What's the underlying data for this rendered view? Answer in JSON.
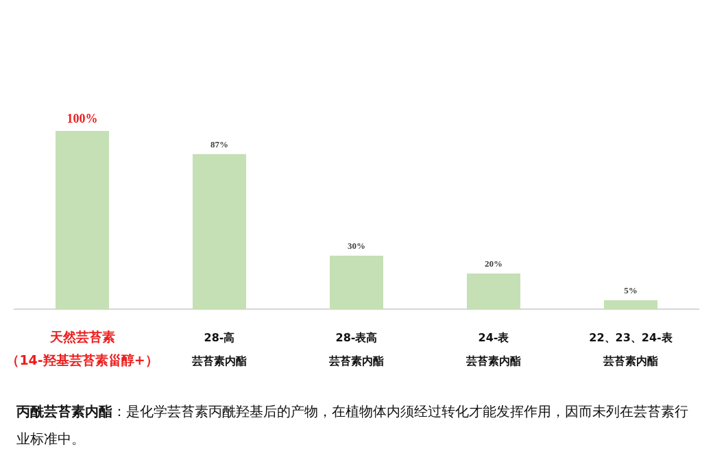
{
  "chart_data": {
    "type": "bar",
    "categories": [
      "天然芸苔素（14-羟基芸苔素甾醇+）",
      "28-高芸苔素内酯",
      "28-表高芸苔素内酯",
      "24-表芸苔素内酯",
      "22、23、24-表芸苔素内酯"
    ],
    "values": [
      100,
      87,
      30,
      20,
      5
    ],
    "value_labels": [
      "100%",
      "87%",
      "30%",
      "20%",
      "5%"
    ],
    "color": "#c5e0b4",
    "annotations": [
      "丙酰芸苔素内酯",
      "：是化学芸苔素丙酰羟基后的产物，在植物体内须经过转化才能发挥作用，因而未列在芸苔素行业标准中。"
    ]
  }
}
